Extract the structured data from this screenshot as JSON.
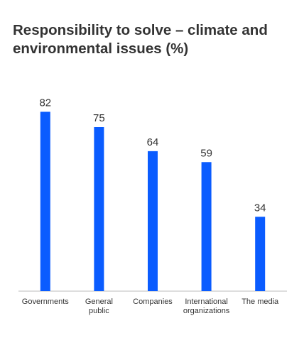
{
  "chart_data": {
    "type": "bar",
    "title": "Responsibility to solve – climate and environmental issues (%)",
    "categories": [
      "Governments",
      "General\npublic",
      "Companies",
      "International\norganizations",
      "The media"
    ],
    "values": [
      82,
      75,
      64,
      59,
      34
    ],
    "ylim": [
      0,
      100
    ],
    "grid": false,
    "bar_color": "#0a5cff",
    "data_labels": true
  }
}
